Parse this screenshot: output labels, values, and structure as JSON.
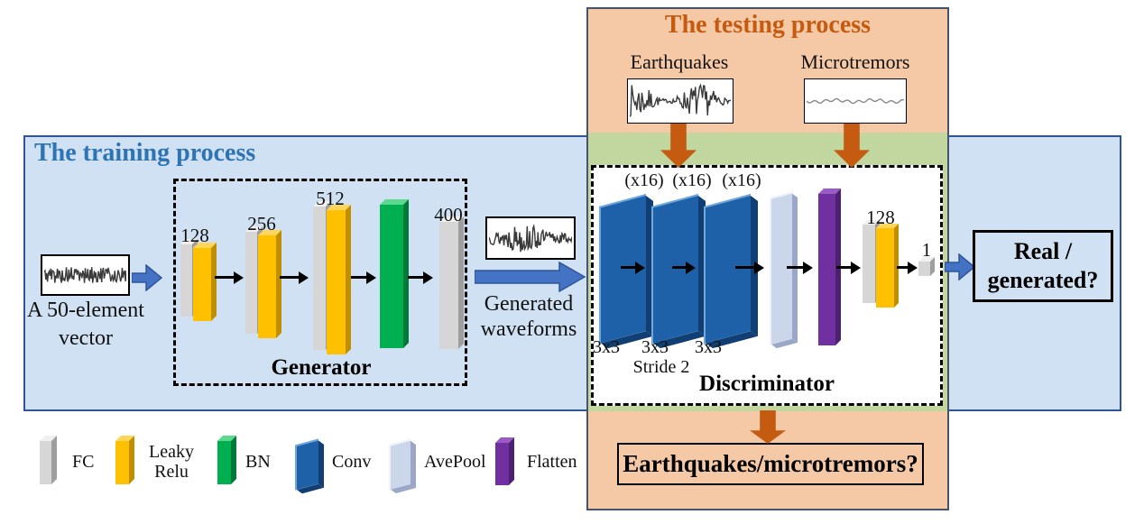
{
  "colors": {
    "training_bg": "#cfe1f2",
    "training_border": "#2f5597",
    "training_title": "#2e74b5",
    "testing_bg": "#f6c9a6",
    "testing_border": "#46546b",
    "testing_title": "#c55a11",
    "overlap_bg": "#c2d6a0",
    "fc_gray": "#d6d6d6",
    "leaky_yellow": "#ffc000",
    "bn_green": "#00b050",
    "conv_blue": "#1f61a9",
    "avepool_lavender": "#ccd6ea",
    "flatten_purple": "#7030a0",
    "arrow_blue": "#4472c4",
    "arrow_blue_border": "#2f5597",
    "arrow_orange": "#c55a11"
  },
  "training": {
    "title": "The training process",
    "input_caption_line1": "A 50-element",
    "input_caption_line2": "vector",
    "generated_caption_line1": "Generated",
    "generated_caption_line2": "waveforms",
    "result_line1": "Real /",
    "result_line2": "generated?"
  },
  "generator": {
    "title": "Generator",
    "layers": [
      "128",
      "256",
      "512",
      "400"
    ]
  },
  "testing": {
    "title": "The testing process",
    "earthquakes_label": "Earthquakes",
    "microtremors_label": "Microtremors",
    "result_label": "Earthquakes/microtremors?"
  },
  "discriminator": {
    "title": "Discriminator",
    "filters": [
      "(x16)",
      "(x16)",
      "(x16)"
    ],
    "kernels": [
      "3x3",
      "3x3",
      "3x3"
    ],
    "stride": "Stride 2",
    "fc": "128",
    "output": "1"
  },
  "legend": {
    "items": [
      {
        "label": "FC"
      },
      {
        "label": "Leaky Relu"
      },
      {
        "label": "BN"
      },
      {
        "label": "Conv"
      },
      {
        "label": "AvePool"
      },
      {
        "label": "Flatten"
      }
    ]
  }
}
